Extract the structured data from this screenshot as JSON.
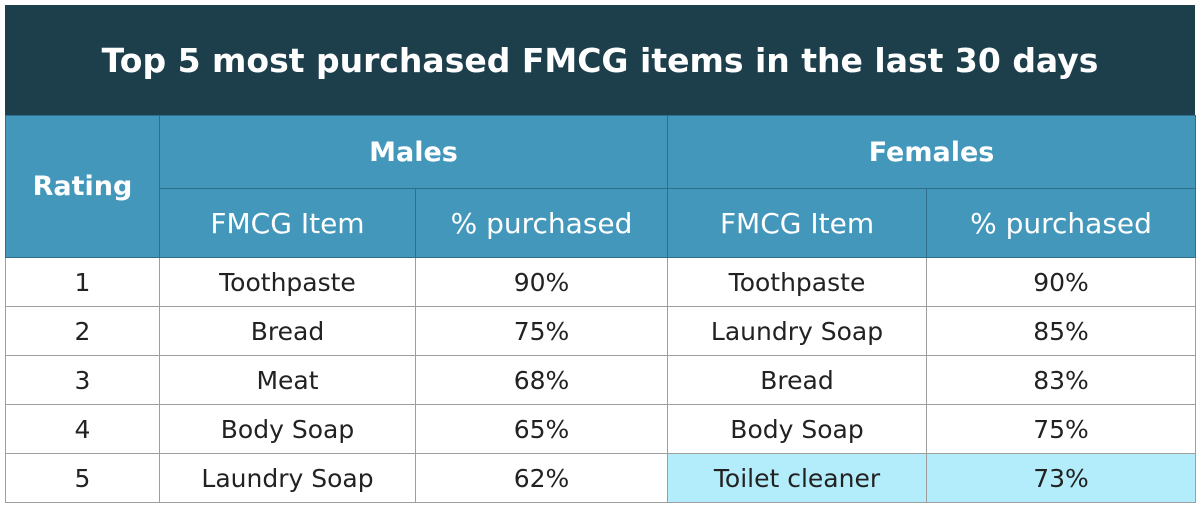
{
  "title": "Top 5 most purchased FMCG items in the last 30 days",
  "colors": {
    "title_bg": "#1d3f4c",
    "header_bg": "#4397bb",
    "highlight": "#b3ecfa"
  },
  "chart_data": {
    "type": "table",
    "title": "Top 5 most purchased FMCG items in the last 30 days",
    "headers": {
      "rating": "Rating",
      "groups": [
        "Males",
        "Females"
      ],
      "sub": [
        "FMCG Item",
        "% purchased",
        "FMCG Item",
        "% purchased"
      ]
    },
    "rows": [
      {
        "rating": "1",
        "male_item": "Toothpaste",
        "male_pct": "90%",
        "female_item": "Toothpaste",
        "female_pct": "90%"
      },
      {
        "rating": "2",
        "male_item": "Bread",
        "male_pct": "75%",
        "female_item": "Laundry Soap",
        "female_pct": "85%"
      },
      {
        "rating": "3",
        "male_item": "Meat",
        "male_pct": "68%",
        "female_item": "Bread",
        "female_pct": "83%"
      },
      {
        "rating": "4",
        "male_item": "Body Soap",
        "male_pct": "65%",
        "female_item": "Body Soap",
        "female_pct": "75%"
      },
      {
        "rating": "5",
        "male_item": "Laundry Soap",
        "male_pct": "62%",
        "female_item": "Toilet cleaner",
        "female_pct": "73%"
      }
    ]
  }
}
